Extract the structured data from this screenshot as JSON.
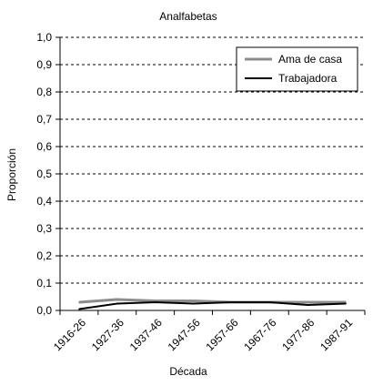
{
  "chart_data": {
    "type": "line",
    "title": "Analfabetas",
    "xlabel": "Década",
    "ylabel": "Proporción",
    "categories": [
      "1916-26",
      "1927-36",
      "1937-46",
      "1947-56",
      "1957-66",
      "1967-76",
      "1977-86",
      "1987-91"
    ],
    "series": [
      {
        "name": "Ama de casa",
        "values": [
          0.03,
          0.04,
          0.035,
          0.035,
          0.03,
          0.03,
          0.03,
          0.03
        ],
        "color": "#8c8c8c"
      },
      {
        "name": "Trabajadora",
        "values": [
          0.005,
          0.025,
          0.03,
          0.025,
          0.03,
          0.03,
          0.02,
          0.025
        ],
        "color": "#000000"
      }
    ],
    "ylim": [
      0,
      1
    ],
    "yticks": [
      "0,0",
      "0,1",
      "0,2",
      "0,3",
      "0,4",
      "0,5",
      "0,6",
      "0,7",
      "0,8",
      "0,9",
      "1,0"
    ],
    "grid": true,
    "legend_position": "top-right"
  }
}
